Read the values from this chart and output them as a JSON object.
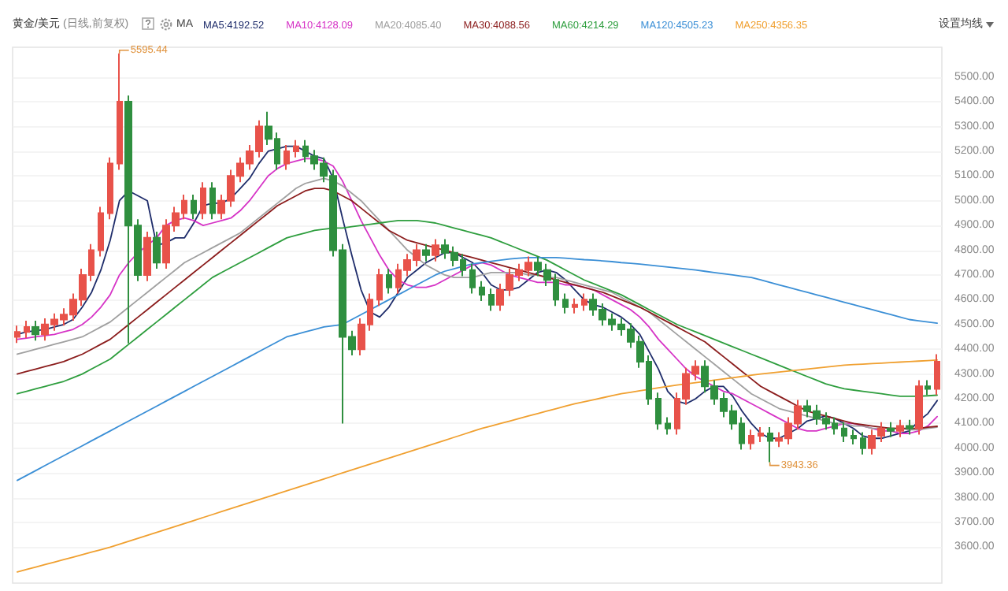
{
  "chart_data": {
    "type": "candlestick",
    "title": "黄金/美元",
    "subtitle": "(日线,前复权)",
    "categories": [
      null,
      null,
      null,
      null,
      null,
      null,
      null,
      null,
      null,
      null,
      null,
      null,
      null,
      null,
      null,
      null,
      null,
      null,
      null,
      null,
      null,
      null,
      null,
      null,
      null,
      null,
      null,
      null,
      null,
      null,
      null,
      null,
      null,
      null,
      null,
      null,
      null,
      null,
      null,
      null,
      null,
      null,
      null,
      null,
      null,
      null,
      null,
      null,
      null,
      null,
      null,
      null,
      null,
      null,
      null,
      null,
      null,
      null,
      null,
      null,
      null,
      null,
      null,
      null,
      null,
      null,
      null,
      null,
      null,
      null,
      null,
      null,
      null,
      null,
      null,
      null,
      null,
      null,
      null,
      null,
      null,
      null,
      null,
      null,
      null,
      null,
      null,
      null,
      null,
      null,
      null,
      null,
      null,
      null,
      null,
      null,
      null,
      null,
      null,
      null
    ],
    "colors": [
      "#e8524a",
      "#e8524a",
      "#2f8f3f",
      "#e8524a",
      "#e8524a",
      "#e8524a",
      "#e8524a",
      "#e8524a",
      "#e8524a",
      "#e8524a",
      "#e8524a",
      "#e8524a",
      "#2f8f3f",
      "#2f8f3f",
      "#e8524a",
      "#2f8f3f",
      "#e8524a",
      "#e8524a",
      "#e8524a",
      "#2f8f3f",
      "#e8524a",
      "#2f8f3f",
      "#e8524a",
      "#e8524a",
      "#e8524a",
      "#e8524a",
      "#e8524a",
      "#2f8f3f",
      "#2f8f3f",
      "#e8524a",
      "#e8524a",
      "#2f8f3f",
      "#2f8f3f",
      "#2f8f3f",
      "#2f8f3f",
      "#2f8f3f",
      "#2f8f3f",
      "#e8524a",
      "#e8524a",
      "#e8524a",
      "#2f8f3f",
      "#e8524a",
      "#e8524a",
      "#e8524a",
      "#2f8f3f",
      "#e8524a",
      "#2f8f3f",
      "#2f8f3f",
      "#2f8f3f",
      "#2f8f3f",
      "#2f8f3f",
      "#2f8f3f",
      "#e8524a",
      "#e8524a",
      "#e8524a",
      "#e8524a",
      "#2f8f3f",
      "#2f8f3f",
      "#2f8f3f",
      "#2f8f3f",
      "#e8524a",
      "#e8524a",
      "#2f8f3f",
      "#2f8f3f",
      "#2f8f3f",
      "#2f8f3f",
      "#2f8f3f",
      "#2f8f3f",
      "#2f8f3f",
      "#2f8f3f",
      "#2f8f3f",
      "#e8524a",
      "#e8524a",
      "#e8524a",
      "#2f8f3f",
      "#2f8f3f",
      "#2f8f3f",
      "#2f8f3f",
      "#2f8f3f",
      "#e8524a",
      "#e8524a",
      "#2f8f3f",
      "#e8524a",
      "#e8524a",
      "#e8524a",
      "#2f8f3f",
      "#2f8f3f",
      "#2f8f3f",
      "#2f8f3f",
      "#2f8f3f",
      "#2f8f3f",
      "#2f8f3f",
      "#e8524a",
      "#e8524a",
      "#2f8f3f",
      "#e8524a",
      "#2f8f3f",
      "#e8524a",
      "#2f8f3f",
      "#e8524a"
    ],
    "ohlc": [
      [
        4450,
        4495,
        4425,
        4470
      ],
      [
        4470,
        4515,
        4445,
        4490
      ],
      [
        4490,
        4515,
        4435,
        4460
      ],
      [
        4460,
        4525,
        4435,
        4500
      ],
      [
        4500,
        4545,
        4475,
        4520
      ],
      [
        4520,
        4565,
        4495,
        4540
      ],
      [
        4540,
        4625,
        4515,
        4600
      ],
      [
        4600,
        4725,
        4575,
        4700
      ],
      [
        4700,
        4825,
        4675,
        4800
      ],
      [
        4800,
        4975,
        4775,
        4950
      ],
      [
        4950,
        5175,
        4925,
        5150
      ],
      [
        5150,
        5595.44,
        5125,
        5400
      ],
      [
        5400,
        5425,
        4424,
        4900
      ],
      [
        4900,
        4925,
        4675,
        4700
      ],
      [
        4700,
        4875,
        4675,
        4850
      ],
      [
        4850,
        4875,
        4725,
        4750
      ],
      [
        4750,
        4925,
        4725,
        4900
      ],
      [
        4900,
        4975,
        4875,
        4950
      ],
      [
        4950,
        5025,
        4925,
        5000
      ],
      [
        5000,
        5025,
        4925,
        4950
      ],
      [
        4950,
        5075,
        4925,
        5050
      ],
      [
        5050,
        5075,
        4925,
        4950
      ],
      [
        4950,
        5025,
        4925,
        5000
      ],
      [
        5000,
        5125,
        4975,
        5100
      ],
      [
        5100,
        5175,
        5075,
        5150
      ],
      [
        5150,
        5225,
        5125,
        5200
      ],
      [
        5200,
        5325,
        5175,
        5300
      ],
      [
        5300,
        5360,
        5225,
        5250
      ],
      [
        5250,
        5275,
        5125,
        5150
      ],
      [
        5150,
        5225,
        5125,
        5200
      ],
      [
        5200,
        5245,
        5175,
        5220
      ],
      [
        5220,
        5245,
        5155,
        5180
      ],
      [
        5180,
        5205,
        5125,
        5150
      ],
      [
        5150,
        5175,
        5075,
        5100
      ],
      [
        5100,
        5125,
        4775,
        4800
      ],
      [
        4800,
        4825,
        4100,
        4450
      ],
      [
        4450,
        4475,
        4375,
        4400
      ],
      [
        4400,
        4525,
        4375,
        4500
      ],
      [
        4500,
        4625,
        4475,
        4600
      ],
      [
        4600,
        4725,
        4575,
        4700
      ],
      [
        4700,
        4725,
        4625,
        4650
      ],
      [
        4650,
        4745,
        4625,
        4720
      ],
      [
        4720,
        4785,
        4695,
        4760
      ],
      [
        4760,
        4825,
        4735,
        4800
      ],
      [
        4800,
        4825,
        4755,
        4780
      ],
      [
        4780,
        4845,
        4755,
        4820
      ],
      [
        4820,
        4845,
        4765,
        4790
      ],
      [
        4790,
        4815,
        4735,
        4760
      ],
      [
        4760,
        4785,
        4695,
        4720
      ],
      [
        4720,
        4745,
        4625,
        4650
      ],
      [
        4650,
        4675,
        4595,
        4620
      ],
      [
        4620,
        4645,
        4555,
        4580
      ],
      [
        4580,
        4665,
        4555,
        4640
      ],
      [
        4640,
        4725,
        4615,
        4700
      ],
      [
        4700,
        4745,
        4675,
        4720
      ],
      [
        4720,
        4775,
        4695,
        4750
      ],
      [
        4750,
        4775,
        4695,
        4720
      ],
      [
        4720,
        4745,
        4655,
        4680
      ],
      [
        4680,
        4705,
        4575,
        4600
      ],
      [
        4600,
        4625,
        4545,
        4570
      ],
      [
        4570,
        4605,
        4545,
        4580
      ],
      [
        4580,
        4625,
        4555,
        4600
      ],
      [
        4600,
        4625,
        4535,
        4560
      ],
      [
        4560,
        4585,
        4495,
        4520
      ],
      [
        4520,
        4545,
        4475,
        4500
      ],
      [
        4500,
        4525,
        4455,
        4480
      ],
      [
        4480,
        4505,
        4405,
        4430
      ],
      [
        4430,
        4455,
        4325,
        4350
      ],
      [
        4350,
        4375,
        4175,
        4200
      ],
      [
        4200,
        4225,
        4075,
        4100
      ],
      [
        4100,
        4125,
        4055,
        4080
      ],
      [
        4080,
        4225,
        4055,
        4200
      ],
      [
        4200,
        4325,
        4175,
        4300
      ],
      [
        4300,
        4355,
        4275,
        4330
      ],
      [
        4330,
        4355,
        4225,
        4250
      ],
      [
        4250,
        4275,
        4175,
        4200
      ],
      [
        4200,
        4225,
        4125,
        4150
      ],
      [
        4150,
        4175,
        4075,
        4100
      ],
      [
        4100,
        4125,
        3995,
        4020
      ],
      [
        4020,
        4075,
        3995,
        4050
      ],
      [
        4050,
        4085,
        4025,
        4060
      ],
      [
        4060,
        4085,
        3943.36,
        4030
      ],
      [
        4030,
        4065,
        4005,
        4040
      ],
      [
        4040,
        4125,
        4015,
        4100
      ],
      [
        4100,
        4195,
        4075,
        4170
      ],
      [
        4170,
        4195,
        4125,
        4150
      ],
      [
        4150,
        4175,
        4095,
        4120
      ],
      [
        4120,
        4145,
        4075,
        4100
      ],
      [
        4100,
        4125,
        4055,
        4080
      ],
      [
        4080,
        4105,
        4025,
        4050
      ],
      [
        4050,
        4075,
        4015,
        4040
      ],
      [
        4040,
        4065,
        3975,
        4000
      ],
      [
        4000,
        4075,
        3975,
        4050
      ],
      [
        4050,
        4105,
        4025,
        4080
      ],
      [
        4080,
        4105,
        4045,
        4070
      ],
      [
        4070,
        4115,
        4045,
        4090
      ],
      [
        4090,
        4115,
        4055,
        4080
      ],
      [
        4080,
        4275,
        4055,
        4250
      ],
      [
        4250,
        4275,
        4215,
        4240
      ],
      [
        4240,
        4380,
        4215,
        4350
      ]
    ],
    "series": [
      {
        "type": "line",
        "name": "MA5:4192.52",
        "color": "#1f2d6b",
        "values": [
          4460,
          4470,
          4475,
          4480,
          4490,
          4500,
          4520,
          4570,
          4630,
          4720,
          4840,
          5000,
          5040,
          5020,
          5000,
          4820,
          4830,
          4850,
          4850,
          4910,
          4980,
          4990,
          4990,
          5010,
          5050,
          5090,
          5150,
          5200,
          5210,
          5220,
          5220,
          5200,
          5180,
          5170,
          5090,
          4930,
          4780,
          4640,
          4550,
          4530,
          4570,
          4630,
          4690,
          4720,
          4750,
          4770,
          4790,
          4790,
          4770,
          4750,
          4710,
          4660,
          4640,
          4640,
          4650,
          4680,
          4710,
          4720,
          4710,
          4680,
          4640,
          4600,
          4580,
          4570,
          4550,
          4530,
          4500,
          4460,
          4390,
          4320,
          4230,
          4190,
          4180,
          4200,
          4230,
          4250,
          4250,
          4210,
          4150,
          4100,
          4060,
          4040,
          4040,
          4060,
          4080,
          4110,
          4120,
          4130,
          4120,
          4100,
          4080,
          4050,
          4040,
          4040,
          4050,
          4060,
          4070,
          4110,
          4140,
          4192.52
        ]
      },
      {
        "type": "line",
        "name": "MA10:4128.09",
        "color": "#d633c6",
        "values": [
          4440,
          4445,
          4450,
          4455,
          4460,
          4470,
          4480,
          4500,
          4530,
          4570,
          4620,
          4700,
          4750,
          4790,
          4820,
          4850,
          4900,
          4920,
          4930,
          4920,
          4900,
          4910,
          4920,
          4930,
          4960,
          5000,
          5050,
          5100,
          5130,
          5150,
          5160,
          5170,
          5170,
          5160,
          5140,
          5080,
          5000,
          4920,
          4850,
          4780,
          4720,
          4680,
          4660,
          4650,
          4650,
          4660,
          4680,
          4700,
          4720,
          4740,
          4750,
          4740,
          4720,
          4700,
          4690,
          4680,
          4670,
          4670,
          4670,
          4660,
          4660,
          4650,
          4640,
          4620,
          4600,
          4580,
          4560,
          4530,
          4490,
          4440,
          4400,
          4360,
          4320,
          4290,
          4270,
          4250,
          4230,
          4220,
          4200,
          4180,
          4160,
          4140,
          4120,
          4100,
          4080,
          4070,
          4070,
          4080,
          4090,
          4100,
          4100,
          4090,
          4080,
          4070,
          4070,
          4060,
          4060,
          4070,
          4090,
          4128.09
        ]
      },
      {
        "type": "line",
        "name": "MA20:4085.40",
        "color": "#a0a0a0",
        "values": [
          4380,
          4390,
          4400,
          4410,
          4420,
          4430,
          4440,
          4450,
          4470,
          4490,
          4510,
          4540,
          4570,
          4600,
          4630,
          4660,
          4690,
          4720,
          4750,
          4770,
          4790,
          4810,
          4830,
          4850,
          4870,
          4900,
          4930,
          4960,
          4990,
          5020,
          5050,
          5070,
          5080,
          5090,
          5080,
          5060,
          5030,
          5000,
          4960,
          4920,
          4880,
          4840,
          4800,
          4770,
          4740,
          4720,
          4700,
          4690,
          4690,
          4690,
          4700,
          4710,
          4710,
          4710,
          4710,
          4700,
          4700,
          4690,
          4690,
          4680,
          4670,
          4660,
          4650,
          4640,
          4630,
          4610,
          4590,
          4570,
          4550,
          4520,
          4490,
          4460,
          4430,
          4400,
          4370,
          4340,
          4310,
          4280,
          4250,
          4220,
          4200,
          4180,
          4160,
          4150,
          4140,
          4130,
          4120,
          4110,
          4100,
          4100,
          4090,
          4090,
          4080,
          4080,
          4080,
          4080,
          4075,
          4075,
          4080,
          4085.4
        ]
      },
      {
        "type": "line",
        "name": "MA30:4088.56",
        "color": "#8b1c1c",
        "values": [
          4300,
          4310,
          4320,
          4330,
          4340,
          4350,
          4365,
          4380,
          4400,
          4420,
          4440,
          4470,
          4500,
          4530,
          4560,
          4590,
          4620,
          4650,
          4680,
          4710,
          4740,
          4770,
          4800,
          4830,
          4860,
          4890,
          4920,
          4950,
          4980,
          5000,
          5020,
          5040,
          5050,
          5050,
          5040,
          5020,
          5000,
          4970,
          4940,
          4910,
          4880,
          4860,
          4840,
          4830,
          4820,
          4810,
          4800,
          4790,
          4780,
          4770,
          4760,
          4750,
          4740,
          4730,
          4720,
          4710,
          4700,
          4690,
          4680,
          4670,
          4660,
          4650,
          4640,
          4630,
          4615,
          4600,
          4585,
          4570,
          4550,
          4530,
          4510,
          4490,
          4470,
          4450,
          4430,
          4400,
          4370,
          4340,
          4310,
          4280,
          4250,
          4230,
          4210,
          4190,
          4170,
          4150,
          4140,
          4130,
          4120,
          4110,
          4100,
          4095,
          4090,
          4085,
          4080,
          4080,
          4080,
          4080,
          4085,
          4088.56
        ]
      },
      {
        "type": "line",
        "name": "MA60:4214.29",
        "color": "#2e9e3e",
        "values": [
          4220,
          4230,
          4240,
          4250,
          4260,
          4270,
          4285,
          4300,
          4320,
          4340,
          4360,
          4390,
          4420,
          4450,
          4480,
          4510,
          4540,
          4570,
          4600,
          4630,
          4660,
          4690,
          4710,
          4730,
          4750,
          4770,
          4790,
          4810,
          4830,
          4850,
          4860,
          4870,
          4880,
          4885,
          4890,
          4890,
          4895,
          4900,
          4905,
          4910,
          4915,
          4920,
          4920,
          4920,
          4915,
          4910,
          4900,
          4890,
          4880,
          4870,
          4860,
          4850,
          4835,
          4820,
          4805,
          4790,
          4775,
          4760,
          4740,
          4720,
          4700,
          4680,
          4665,
          4650,
          4635,
          4620,
          4600,
          4580,
          4560,
          4540,
          4520,
          4500,
          4485,
          4470,
          4455,
          4440,
          4425,
          4410,
          4395,
          4380,
          4365,
          4350,
          4335,
          4320,
          4305,
          4290,
          4275,
          4260,
          4250,
          4240,
          4235,
          4230,
          4225,
          4220,
          4215,
          4210,
          4210,
          4210,
          4212,
          4214.29
        ]
      },
      {
        "type": "line",
        "name": "MA120:4505.23",
        "color": "#3b8fd6",
        "values": [
          3870,
          3890,
          3910,
          3930,
          3950,
          3970,
          3990,
          4010,
          4030,
          4050,
          4070,
          4090,
          4110,
          4130,
          4150,
          4170,
          4190,
          4210,
          4230,
          4250,
          4270,
          4290,
          4310,
          4330,
          4350,
          4370,
          4390,
          4410,
          4430,
          4450,
          4460,
          4470,
          4480,
          4490,
          4495,
          4500,
          4520,
          4540,
          4560,
          4580,
          4600,
          4620,
          4640,
          4660,
          4680,
          4700,
          4715,
          4725,
          4735,
          4745,
          4750,
          4755,
          4760,
          4765,
          4768,
          4770,
          4770,
          4770,
          4770,
          4768,
          4765,
          4762,
          4760,
          4757,
          4754,
          4750,
          4747,
          4744,
          4740,
          4736,
          4732,
          4728,
          4724,
          4720,
          4715,
          4710,
          4705,
          4700,
          4695,
          4690,
          4680,
          4670,
          4660,
          4650,
          4640,
          4630,
          4620,
          4610,
          4600,
          4590,
          4580,
          4570,
          4560,
          4550,
          4540,
          4530,
          4520,
          4515,
          4510,
          4505.23
        ]
      },
      {
        "type": "line",
        "name": "MA250:4356.35",
        "color": "#f0a030",
        "values": [
          3500,
          3510,
          3520,
          3530,
          3540,
          3550,
          3560,
          3570,
          3580,
          3590,
          3600,
          3612,
          3624,
          3636,
          3648,
          3660,
          3672,
          3684,
          3696,
          3708,
          3720,
          3732,
          3744,
          3756,
          3768,
          3780,
          3792,
          3804,
          3816,
          3828,
          3840,
          3852,
          3864,
          3876,
          3888,
          3900,
          3912,
          3924,
          3936,
          3948,
          3960,
          3972,
          3984,
          3996,
          4008,
          4020,
          4032,
          4044,
          4056,
          4068,
          4080,
          4090,
          4100,
          4110,
          4120,
          4130,
          4140,
          4150,
          4160,
          4170,
          4180,
          4188,
          4196,
          4204,
          4212,
          4220,
          4226,
          4232,
          4238,
          4244,
          4250,
          4255,
          4260,
          4265,
          4270,
          4275,
          4280,
          4285,
          4290,
          4295,
          4300,
          4304,
          4308,
          4312,
          4316,
          4320,
          4324,
          4328,
          4332,
          4336,
          4338,
          4340,
          4342,
          4344,
          4346,
          4348,
          4350,
          4352,
          4354,
          4356.35
        ]
      }
    ],
    "ylim": [
      3455,
      5620
    ],
    "yticks": [
      {
        "value": 3600,
        "label": "3600.00"
      },
      {
        "value": 3700,
        "label": "3700.00"
      },
      {
        "value": 3800,
        "label": "3800.00"
      },
      {
        "value": 3900,
        "label": "3900.00"
      },
      {
        "value": 4000,
        "label": "4000.00"
      },
      {
        "value": 4100,
        "label": "4100.00"
      },
      {
        "value": 4200,
        "label": "4200.00"
      },
      {
        "value": 4300,
        "label": "4300.00"
      },
      {
        "value": 4400,
        "label": "4400.00"
      },
      {
        "value": 4500,
        "label": "4500.00"
      },
      {
        "value": 4600,
        "label": "4600.00"
      },
      {
        "value": 4700,
        "label": "4700.00"
      },
      {
        "value": 4800,
        "label": "4800.00"
      },
      {
        "value": 4900,
        "label": "4900.00"
      },
      {
        "value": 5000,
        "label": "5000.00"
      },
      {
        "value": 5100,
        "label": "5100.00"
      },
      {
        "value": 5200,
        "label": "5200.00"
      },
      {
        "value": 5300,
        "label": "5300.00"
      },
      {
        "value": 5400,
        "label": "5400.00"
      },
      {
        "value": 5500,
        "label": "5500.00"
      }
    ],
    "annotations": [
      "MA",
      "设置均线",
      "5595.44",
      "3943.36"
    ],
    "grid": "y",
    "legend": "top left",
    "tick_labels": "y",
    "line_style": "solid"
  }
}
